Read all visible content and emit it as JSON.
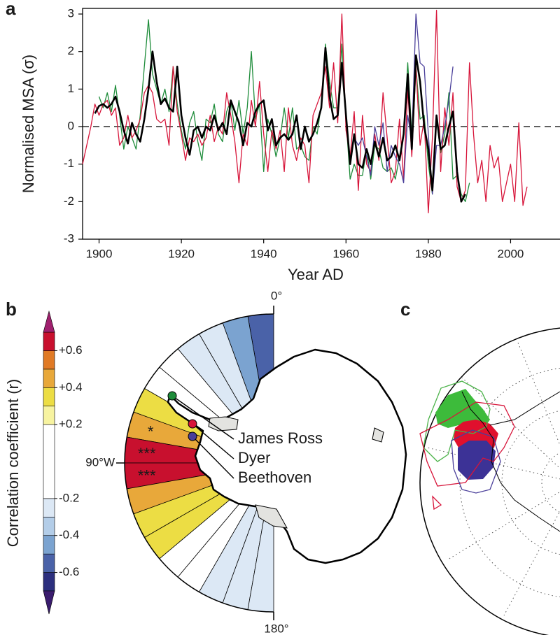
{
  "panels": [
    "a",
    "b",
    "c"
  ],
  "chart_data": [
    {
      "type": "line",
      "xlabel": "Year AD",
      "ylabel": "Normalised MSA (σ)",
      "xlim": [
        1896,
        2012
      ],
      "ylim": [
        -3,
        3.15
      ],
      "xticks": [
        1900,
        1920,
        1940,
        1960,
        1980,
        2000
      ],
      "yticks": [
        -3,
        -2,
        -1,
        0,
        1,
        2,
        3
      ],
      "hline": 0,
      "x": [
        1896,
        1897,
        1898,
        1899,
        1900,
        1901,
        1902,
        1903,
        1904,
        1905,
        1906,
        1907,
        1908,
        1909,
        1910,
        1911,
        1912,
        1913,
        1914,
        1915,
        1916,
        1917,
        1918,
        1919,
        1920,
        1921,
        1922,
        1923,
        1924,
        1925,
        1926,
        1927,
        1928,
        1929,
        1930,
        1931,
        1932,
        1933,
        1934,
        1935,
        1936,
        1937,
        1938,
        1939,
        1940,
        1941,
        1942,
        1943,
        1944,
        1945,
        1946,
        1947,
        1948,
        1949,
        1950,
        1951,
        1952,
        1953,
        1954,
        1955,
        1956,
        1957,
        1958,
        1959,
        1960,
        1961,
        1962,
        1963,
        1964,
        1965,
        1966,
        1967,
        1968,
        1969,
        1970,
        1971,
        1972,
        1973,
        1974,
        1975,
        1976,
        1977,
        1978,
        1979,
        1980,
        1981,
        1982,
        1983,
        1984,
        1985,
        1986,
        1987,
        1988,
        1989,
        1990,
        1991,
        1992,
        1993,
        1994,
        1995,
        1996,
        1997,
        1998,
        1999,
        2000,
        2001,
        2002,
        2003,
        2004
      ],
      "series": [
        {
          "name": "James Ross",
          "color": "#1e8c3a",
          "values": [
            null,
            null,
            null,
            null,
            0.8,
            0.5,
            0.9,
            0.4,
            1.1,
            0.3,
            -0.6,
            0.0,
            -0.3,
            -0.6,
            0.3,
            1.6,
            2.85,
            1.4,
            1.0,
            0.6,
            1.0,
            0.4,
            1.6,
            0.6,
            -0.1,
            -0.6,
            0.1,
            0.4,
            -0.4,
            -0.9,
            0.2,
            0.1,
            0.6,
            -0.2,
            -0.4,
            0.4,
            0.7,
            -0.1,
            0.7,
            -0.2,
            0.5,
            2.0,
            0.2,
            0.6,
            -1.2,
            0.2,
            -0.2,
            -0.8,
            -0.3,
            0.5,
            -0.3,
            0.5,
            -0.6,
            -0.5,
            -0.8,
            -0.9,
            0.0,
            -0.2,
            0.6,
            2.2,
            1.2,
            0.5,
            0.5,
            2.2,
            0.2,
            -1.4,
            -1.0,
            -1.3,
            -1.3,
            -0.6,
            -1.4,
            -0.5,
            -0.6,
            -1.1,
            -1.2,
            -1.1,
            -1.4,
            -0.8,
            -0.2,
            1.7,
            -0.2,
            1.6,
            0.2,
            0.3,
            -1.0,
            -1.8,
            0.2,
            -0.7,
            -0.2,
            0.9,
            -1.4,
            -1.3,
            -1.8,
            -2.0,
            -1.5,
            null,
            null,
            null,
            null,
            null,
            null,
            null,
            null,
            null,
            null,
            null,
            null,
            null,
            null
          ]
        },
        {
          "name": "Dyer",
          "color": "#d7153a",
          "values": [
            -1.0,
            -0.5,
            0.0,
            0.6,
            0.3,
            0.6,
            0.7,
            0.3,
            0.5,
            -0.5,
            -0.3,
            0.3,
            -0.3,
            -0.1,
            0.2,
            0.9,
            1.1,
            0.9,
            0.2,
            0.1,
            0.2,
            -0.5,
            1.6,
            0.4,
            -0.2,
            -0.9,
            -0.3,
            -0.4,
            -0.2,
            -0.5,
            -0.3,
            0.3,
            -0.4,
            0.0,
            -0.2,
            0.9,
            0.3,
            -0.4,
            -1.5,
            -0.2,
            -0.5,
            0.7,
            0.0,
            1.2,
            -0.2,
            -1.2,
            -0.1,
            -0.6,
            -0.1,
            -1.2,
            0.5,
            -0.5,
            -0.9,
            -0.3,
            -0.5,
            -1.5,
            0.3,
            0.6,
            0.9,
            1.6,
            0.5,
            1.7,
            0.1,
            3.0,
            -0.1,
            -0.8,
            0.4,
            -1.7,
            0.3,
            -1.0,
            -1.2,
            -0.2,
            -0.9,
            0.9,
            -0.3,
            -1.5,
            -1.2,
            0.2,
            -1.4,
            1.0,
            -0.8,
            1.6,
            -0.5,
            0.2,
            -2.3,
            -0.3,
            3.1,
            -1.2,
            0.5,
            -0.5,
            0.9,
            -1.6,
            -2.0,
            -1.7,
            1.7,
            -0.2,
            -1.5,
            -0.9,
            -2.0,
            -0.5,
            -1.1,
            -0.8,
            -2.0,
            -1.5,
            -1.0,
            -2.0,
            0.1,
            -2.1,
            -1.6
          ]
        },
        {
          "name": "Beethoven",
          "color": "#4a3f9a",
          "values": [
            null,
            null,
            null,
            null,
            null,
            null,
            null,
            null,
            null,
            null,
            null,
            null,
            null,
            null,
            null,
            null,
            null,
            null,
            null,
            null,
            null,
            null,
            null,
            null,
            null,
            null,
            null,
            null,
            null,
            null,
            null,
            null,
            null,
            null,
            null,
            null,
            null,
            null,
            null,
            null,
            null,
            null,
            null,
            null,
            null,
            null,
            null,
            null,
            null,
            null,
            null,
            null,
            null,
            null,
            null,
            null,
            null,
            null,
            null,
            null,
            null,
            null,
            null,
            null,
            null,
            null,
            -0.3,
            -0.5,
            -0.3,
            -0.8,
            -1.3,
            0.0,
            -0.5,
            0.1,
            -1.2,
            -0.5,
            -0.8,
            -1.0,
            -1.5,
            0.3,
            -0.4,
            3.0,
            1.7,
            1.6,
            -0.2,
            -1.8,
            -0.5,
            -0.5,
            0.0,
            0.7,
            1.6,
            null,
            null,
            null,
            null,
            null,
            null,
            null,
            null,
            null,
            null,
            null,
            null,
            null,
            null,
            null,
            null,
            null,
            null
          ]
        },
        {
          "color": "#000000",
          "values": [
            null,
            null,
            null,
            0.35,
            0.55,
            0.6,
            0.5,
            0.6,
            0.8,
            0.4,
            -0.1,
            -0.45,
            0.1,
            -0.2,
            -0.4,
            0.2,
            1.0,
            2.0,
            1.2,
            0.6,
            0.75,
            0.5,
            0.4,
            1.6,
            0.3,
            -0.3,
            -0.75,
            -0.1,
            0.0,
            -0.3,
            0.0,
            -0.1,
            0.3,
            -0.1,
            0.1,
            -0.2,
            0.7,
            0.4,
            0.1,
            -0.5,
            0.1,
            0.0,
            0.4,
            0.6,
            0.7,
            -0.1,
            0.2,
            -0.5,
            -0.3,
            -0.2,
            -0.35,
            -0.2,
            0.3,
            -0.6,
            0.0,
            -0.4,
            -0.2,
            0.1,
            0.5,
            2.1,
            0.8,
            0.2,
            0.3,
            1.7,
            0.3,
            -1.0,
            -0.2,
            -1.0,
            -1.1,
            -0.6,
            -1.0,
            -0.4,
            -0.8,
            -0.3,
            -0.9,
            -0.8,
            -0.5,
            -0.9,
            -0.2,
            1.4,
            -0.6,
            1.9,
            1.2,
            0.0,
            -0.6,
            -1.7,
            0.3,
            -0.6,
            -0.5,
            0.0,
            0.4,
            -1.2,
            -2.0,
            -1.8,
            null,
            null,
            null,
            null,
            null,
            null,
            null,
            null,
            null,
            null,
            null,
            null,
            null,
            null,
            null
          ]
        }
      ]
    },
    {
      "type": "polar-sectors",
      "clabel": "Correlation coefficient (r)",
      "clim": [
        -0.7,
        0.7
      ],
      "cticks": [
        {
          "value": 0.6,
          "label": "+0.6"
        },
        {
          "value": 0.4,
          "label": "+0.4"
        },
        {
          "value": 0.2,
          "label": "+0.2"
        },
        -0.2,
        -0.4,
        -0.6
      ],
      "levels": [
        -0.7,
        -0.6,
        -0.5,
        -0.4,
        -0.3,
        -0.2,
        0.2,
        0.3,
        0.4,
        0.5,
        0.6,
        0.7
      ],
      "colors": [
        "#3a1c6e",
        "#2c2f7e",
        "#4a62a8",
        "#7ba3d0",
        "#b3cde8",
        "#dce8f5",
        "#ffffff",
        "#f7f3a0",
        "#ecdd44",
        "#e8a83a",
        "#e07a25",
        "#c8102e",
        "#a0206e"
      ],
      "xlim": [
        0,
        180
      ],
      "angle_labels": [
        {
          "value": 0,
          "label": "0°"
        },
        {
          "value": 90,
          "label": "90°W"
        },
        {
          "value": 180,
          "label": "180°"
        }
      ],
      "values": [
        -0.55,
        -0.45,
        -0.25,
        -0.22,
        0.1,
        0.05,
        0.35,
        0.45,
        0.65,
        0.65,
        0.45,
        0.35,
        0.35,
        0.1,
        -0.1,
        -0.25,
        -0.25,
        -0.25
      ],
      "significance": [
        null,
        null,
        null,
        null,
        null,
        null,
        null,
        "*",
        "***",
        "***",
        null,
        null,
        null,
        null,
        null,
        null,
        null,
        null
      ]
    }
  ]
}
